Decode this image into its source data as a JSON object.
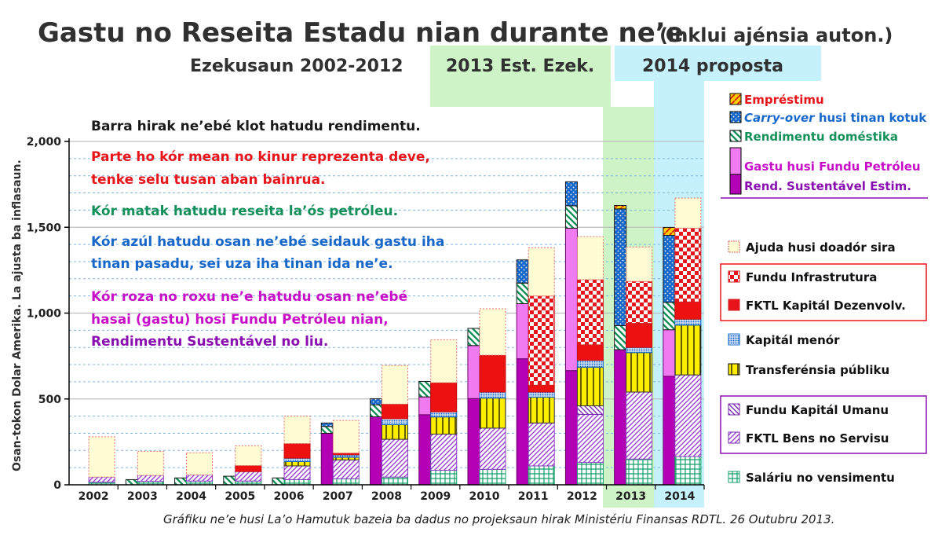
{
  "title": "Gastu no Reseita Estadu nian durante ne’e",
  "title_suffix": "(inklui ajénsia auton.)",
  "bands": {
    "actual": "Ezekusaun 2002-2012",
    "est": "2013 Est. Ezek.",
    "proposal": "2014 proposta"
  },
  "y_axis_label": "Osan-tokon Dolar Amerika.   La ajusta ba inflasaun.",
  "notes": [
    {
      "text": "Barra hirak ne’ebé klot hatudu rendimentu.",
      "color": "#1a1a1a"
    },
    {
      "text": "Parte ho kór mean no kinur reprezenta deve,",
      "color": "#e8141b"
    },
    {
      "text": "tenke selu tusan aban bainrua.",
      "color": "#e8141b"
    },
    {
      "text": "Kór matak hatudu reseita la’ós petróleu.",
      "color": "#16905a"
    },
    {
      "text": "Kór azúl hatudu osan ne’ebé seidauk gastu iha",
      "color": "#1768c8"
    },
    {
      "text": "tinan pasadu, sei uza iha tinan ida ne’e.",
      "color": "#1768c8"
    },
    {
      "text": "Kór roza no roxu ne’e hatudu osan ne’ebé",
      "color": "#c80fc8"
    },
    {
      "text": "hasai (gastu) hosi Fundu Petróleu nian,",
      "color": "#c80fc8"
    },
    {
      "text": "Rendimentu Sustentável no liu.",
      "color": "#8a0fb0"
    }
  ],
  "legend_revenue": [
    {
      "key": "emprestimu",
      "label": "Empréstimu",
      "color": "#e8141b"
    },
    {
      "key": "carryover",
      "label_a": "Carry-over",
      "label_b": " husi tinan kotuk",
      "color": "#1768c8"
    },
    {
      "key": "domestic",
      "label": "Rendimentu doméstika",
      "color": "#16905a"
    },
    {
      "key": "pf_excess",
      "label": "Gastu husi Fundu Petróleu",
      "color": "#c80fc8"
    },
    {
      "key": "esi",
      "label": "Rend. Sustentável Estim.",
      "color": "#8a0fb0"
    }
  ],
  "legend_spending": [
    {
      "key": "donor",
      "label": "Ajuda husi doadór sira"
    },
    {
      "key": "infra",
      "label": "Fundu Infrastrutura"
    },
    {
      "key": "fktl_cap",
      "label": "FKTL Kapitál Dezenvolv."
    },
    {
      "key": "minor",
      "label": "Kapitál menór"
    },
    {
      "key": "transfers",
      "label": "Transferénsia públiku"
    },
    {
      "key": "hcdf",
      "label": "Fundu Kapitál Umanu"
    },
    {
      "key": "goods",
      "label": "FKTL Bens no Servisu"
    },
    {
      "key": "salary",
      "label": "Saláriu no vensimentu"
    }
  ],
  "source": "Gráfiku ne’e husi La’o Hamutuk bazeia ba dadus no projeksaun hirak Ministériu Finansas RDTL. 26 Outubru 2013.",
  "chart_data": {
    "type": "bar",
    "title": "Gastu no Reseita Estadu nian durante ne’e (inklui ajénsia auton.)",
    "xlabel": "",
    "ylabel": "Osan-tokon Dolar Amerika. La ajusta ba inflasaun.",
    "ylim": [
      0,
      2000
    ],
    "yticks": [
      0,
      500,
      1000,
      1500,
      2000
    ],
    "ytick_labels": [
      "0",
      "500",
      "1,000",
      "1,500",
      "2,000"
    ],
    "categories": [
      "2002",
      "2003",
      "2004",
      "2005",
      "2006",
      "2007",
      "2008",
      "2009",
      "2010",
      "2011",
      "2012",
      "2013",
      "2014"
    ],
    "revenue_series": [
      {
        "name": "Rend. Sustentável Estim.",
        "key": "esi",
        "values": [
          0,
          0,
          0,
          0,
          0,
          300,
          396,
          408,
          502,
          734,
          665,
          787,
          632
        ]
      },
      {
        "name": "Gastu husi Fundu Petróleu",
        "key": "pf_excess",
        "values": [
          0,
          0,
          0,
          0,
          0,
          0,
          0,
          104,
          309,
          321,
          830,
          0,
          271
        ]
      },
      {
        "name": "Rendimentu doméstika",
        "key": "domestic",
        "values": [
          0,
          30,
          40,
          50,
          40,
          40,
          70,
          90,
          100,
          120,
          130,
          140,
          160
        ]
      },
      {
        "name": "Carry-over husi tinan kotuk",
        "key": "carryover",
        "values": [
          0,
          0,
          0,
          0,
          0,
          20,
          35,
          0,
          0,
          135,
          140,
          680,
          390
        ]
      },
      {
        "name": "Empréstimu",
        "key": "emprestimu",
        "values": [
          0,
          0,
          0,
          0,
          0,
          0,
          0,
          0,
          0,
          0,
          0,
          20,
          46
        ]
      }
    ],
    "spending_series": [
      {
        "name": "Saláriu no vensimentu",
        "key": "salary",
        "values": [
          15,
          20,
          22,
          22,
          30,
          35,
          45,
          85,
          90,
          110,
          130,
          150,
          165
        ]
      },
      {
        "name": "FKTL Bens no Servisu",
        "key": "goods",
        "values": [
          30,
          35,
          35,
          55,
          80,
          110,
          220,
          210,
          240,
          250,
          280,
          390,
          475
        ]
      },
      {
        "name": "Fundu Kapitál Umanu",
        "key": "hcdf",
        "values": [
          0,
          0,
          0,
          0,
          0,
          0,
          0,
          0,
          0,
          0,
          50,
          0,
          0
        ]
      },
      {
        "name": "Transferénsia públiku",
        "key": "transfers",
        "values": [
          0,
          0,
          0,
          0,
          25,
          15,
          85,
          100,
          175,
          150,
          225,
          230,
          290
        ]
      },
      {
        "name": "Kapitál menór",
        "key": "minor",
        "values": [
          0,
          0,
          0,
          0,
          20,
          15,
          35,
          30,
          35,
          30,
          40,
          30,
          35
        ]
      },
      {
        "name": "FKTL Kapitál Dezenvolv.",
        "key": "fktl_cap",
        "values": [
          0,
          0,
          0,
          35,
          85,
          10,
          85,
          170,
          215,
          40,
          90,
          140,
          100
        ]
      },
      {
        "name": "Fundu Infrastrutura",
        "key": "infra",
        "values": [
          0,
          0,
          0,
          0,
          0,
          0,
          0,
          0,
          0,
          520,
          380,
          245,
          430
        ]
      },
      {
        "name": "Ajuda husi doadór sira",
        "key": "donor",
        "values": [
          235,
          140,
          130,
          115,
          160,
          190,
          225,
          250,
          270,
          280,
          250,
          200,
          175
        ]
      }
    ]
  }
}
